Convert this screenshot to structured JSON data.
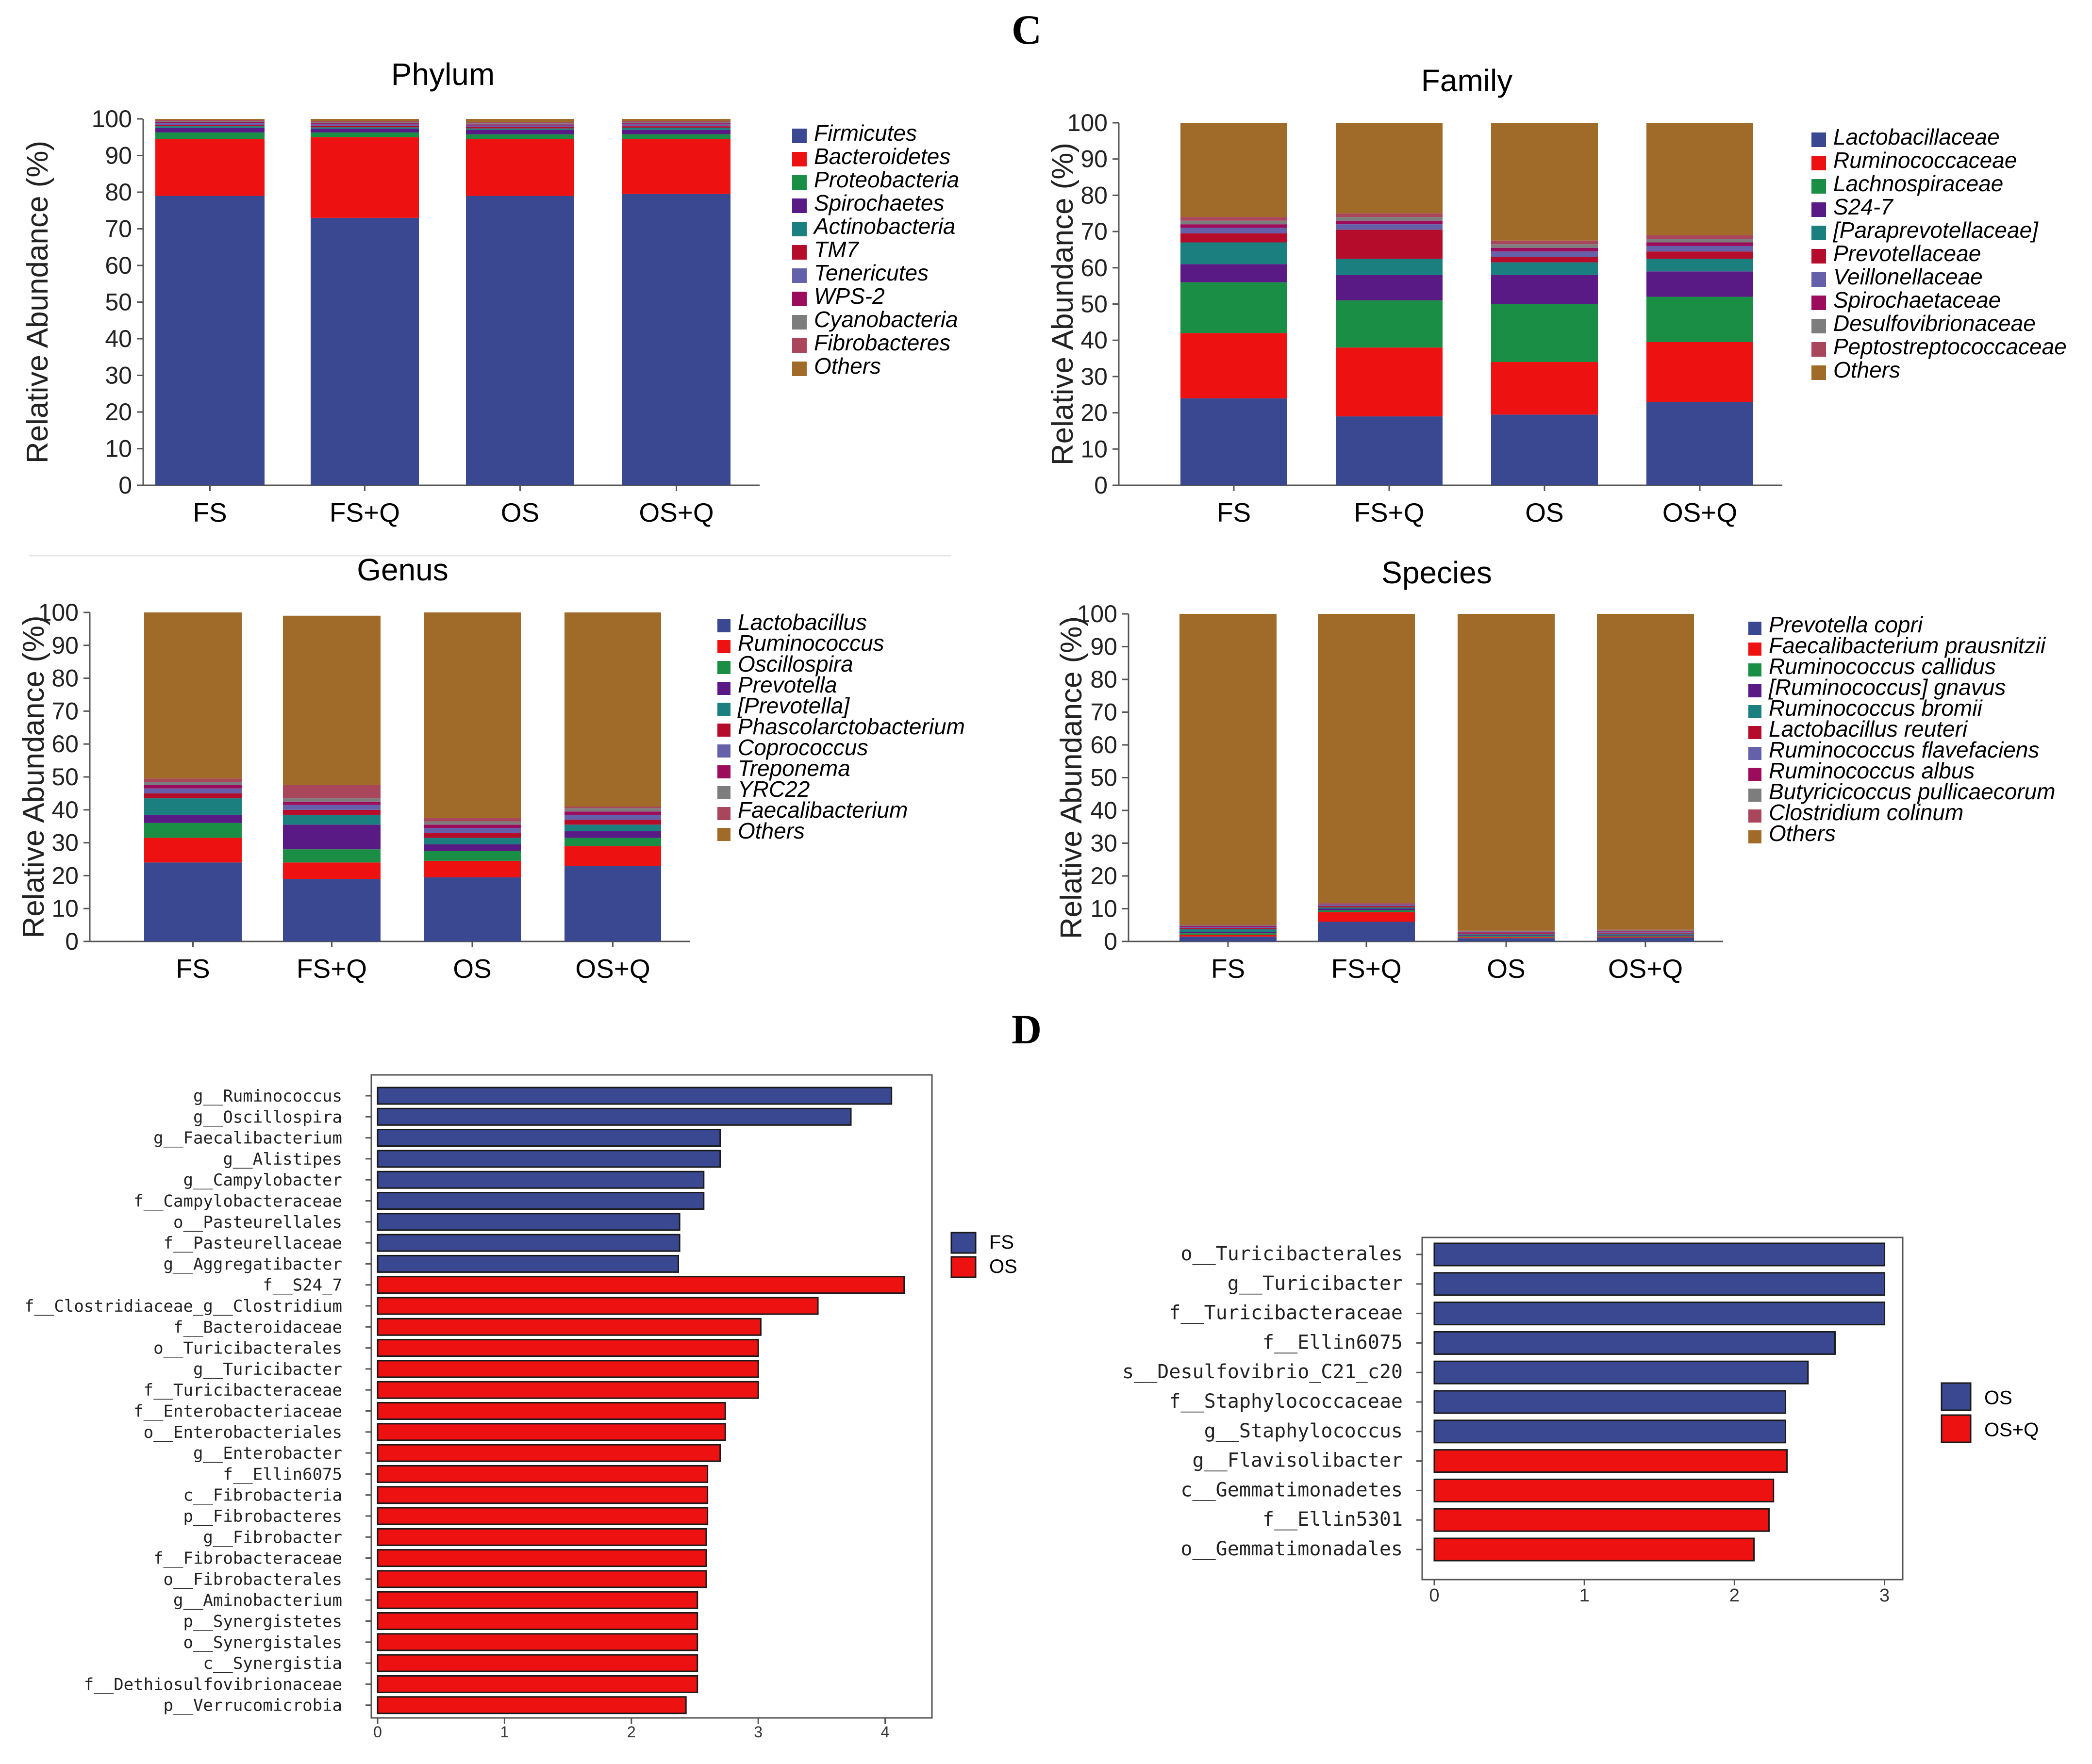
{
  "panel_labels": {
    "c": "C",
    "d": "D"
  },
  "colors": {
    "c1": "#3a4891",
    "c2": "#ee1111",
    "c3": "#1b8e45",
    "c4": "#5a1a86",
    "c5": "#1b7f80",
    "c6": "#b50c2c",
    "c7": "#6560aa",
    "c8": "#9c0c5c",
    "c9": "#7d7d7d",
    "c10": "#a9465c",
    "c11": "#a06b28"
  },
  "chart_data": [
    {
      "id": "phylum",
      "type": "bar",
      "stacked": true,
      "title": "Phylum",
      "ylabel": "Relative Abundance (%)",
      "ylim": [
        0,
        100
      ],
      "yticks": [
        "0",
        "10",
        "20",
        "30",
        "40",
        "50",
        "60",
        "70",
        "80",
        "90",
        "100"
      ],
      "categories": [
        "FS",
        "FS+Q",
        "OS",
        "OS+Q"
      ],
      "series": [
        {
          "name": "Firmicutes",
          "values": [
            79,
            73,
            79,
            79.5
          ]
        },
        {
          "name": "Bacteroidetes",
          "values": [
            15.5,
            22,
            15.5,
            15
          ]
        },
        {
          "name": "Proteobacteria",
          "values": [
            1.8,
            1.3,
            1.3,
            1.3
          ]
        },
        {
          "name": "Spirochaetes",
          "values": [
            1.2,
            1,
            1.2,
            1.2
          ]
        },
        {
          "name": "Actinobacteria",
          "values": [
            0.5,
            0.4,
            0.4,
            0.6
          ]
        },
        {
          "name": "TM7",
          "values": [
            0.4,
            0.4,
            0.4,
            0.4
          ]
        },
        {
          "name": "Tenericutes",
          "values": [
            0.4,
            0.4,
            0.4,
            0.5
          ]
        },
        {
          "name": "WPS-2",
          "values": [
            0.3,
            0.3,
            0.3,
            0.3
          ]
        },
        {
          "name": "Cyanobacteria",
          "values": [
            0.3,
            0.3,
            0.3,
            0.3
          ]
        },
        {
          "name": "Fibrobacteres",
          "values": [
            0.3,
            0.3,
            0.3,
            0.3
          ]
        },
        {
          "name": "Others",
          "values": [
            0.3,
            0.6,
            0.9,
            0.6
          ]
        }
      ]
    },
    {
      "id": "family",
      "type": "bar",
      "stacked": true,
      "title": "Family",
      "ylabel": "Relative Abundance (%)",
      "ylim": [
        0,
        100
      ],
      "yticks": [
        "0",
        "10",
        "20",
        "30",
        "40",
        "50",
        "60",
        "70",
        "80",
        "90",
        "100"
      ],
      "categories": [
        "FS",
        "FS+Q",
        "OS",
        "OS+Q"
      ],
      "series": [
        {
          "name": "Lactobacillaceae",
          "values": [
            24,
            19,
            19.5,
            23
          ]
        },
        {
          "name": "Ruminococcaceae",
          "values": [
            18,
            19,
            14.5,
            16.5
          ]
        },
        {
          "name": "Lachnospiraceae",
          "values": [
            14,
            13,
            16,
            12.5
          ]
        },
        {
          "name": "S24-7",
          "values": [
            5,
            7,
            8,
            7
          ]
        },
        {
          "name": "[Paraprevotellaceae]",
          "values": [
            6,
            4.5,
            3.5,
            3.5
          ]
        },
        {
          "name": "Prevotellaceae",
          "values": [
            2.5,
            8,
            1.5,
            2
          ]
        },
        {
          "name": "Veillonellaceae",
          "values": [
            1.5,
            1.5,
            1.5,
            1.5
          ]
        },
        {
          "name": "Spirochaetaceae",
          "values": [
            1,
            1,
            1,
            1
          ]
        },
        {
          "name": "Desulfovibrionaceae",
          "values": [
            1,
            1,
            1,
            1
          ]
        },
        {
          "name": "Peptostreptococcaceae",
          "values": [
            1,
            1,
            1,
            1
          ]
        },
        {
          "name": "Others",
          "values": [
            26,
            25,
            32.5,
            31
          ]
        }
      ]
    },
    {
      "id": "genus",
      "type": "bar",
      "stacked": true,
      "title": "Genus",
      "ylabel": "Relative Abundance (%)",
      "ylim": [
        0,
        100
      ],
      "yticks": [
        "0",
        "10",
        "20",
        "30",
        "40",
        "50",
        "60",
        "70",
        "80",
        "90",
        "100"
      ],
      "categories": [
        "FS",
        "FS+Q",
        "OS",
        "OS+Q"
      ],
      "series": [
        {
          "name": "Lactobacillus",
          "values": [
            24,
            19,
            19.5,
            23
          ]
        },
        {
          "name": "Ruminococcus",
          "values": [
            7.5,
            5,
            5,
            6
          ]
        },
        {
          "name": "Oscillospira",
          "values": [
            4.5,
            4,
            3,
            2.5
          ]
        },
        {
          "name": "Prevotella",
          "values": [
            2.5,
            7.5,
            2,
            2
          ]
        },
        {
          "name": "[Prevotella]",
          "values": [
            5,
            3,
            2,
            2
          ]
        },
        {
          "name": "Phascolarctobacterium",
          "values": [
            1.5,
            1.5,
            1.5,
            1.5
          ]
        },
        {
          "name": "Coprococcus",
          "values": [
            1.5,
            1.5,
            1.5,
            1.5
          ]
        },
        {
          "name": "Treponema",
          "values": [
            1,
            1,
            1,
            1
          ]
        },
        {
          "name": "YRC22",
          "values": [
            1,
            1,
            1,
            1
          ]
        },
        {
          "name": "Faecalibacterium",
          "values": [
            1,
            4,
            1,
            0.5
          ]
        },
        {
          "name": "Others",
          "values": [
            50.5,
            51.5,
            62.5,
            59
          ]
        }
      ]
    },
    {
      "id": "species",
      "type": "bar",
      "stacked": true,
      "title": "Species",
      "ylabel": "Relative Abundance (%)",
      "ylim": [
        0,
        100
      ],
      "yticks": [
        "0",
        "10",
        "20",
        "30",
        "40",
        "50",
        "60",
        "70",
        "80",
        "90",
        "100"
      ],
      "categories": [
        "FS",
        "FS+Q",
        "OS",
        "OS+Q"
      ],
      "series": [
        {
          "name": "Prevotella copri",
          "values": [
            1.5,
            6,
            1,
            1.2
          ]
        },
        {
          "name": "Faecalibacterium prausnitzii",
          "values": [
            0.5,
            3,
            0.3,
            0.3
          ]
        },
        {
          "name": "Ruminococcus callidus",
          "values": [
            0.5,
            0.5,
            0.3,
            0.3
          ]
        },
        {
          "name": "[Ruminococcus] gnavus",
          "values": [
            0.4,
            0.5,
            0.3,
            0.3
          ]
        },
        {
          "name": "Ruminococcus bromii",
          "values": [
            0.8,
            0.4,
            0.3,
            0.3
          ]
        },
        {
          "name": "Lactobacillus reuteri",
          "values": [
            0.4,
            0.4,
            0.3,
            0.3
          ]
        },
        {
          "name": "Ruminococcus flavefaciens",
          "values": [
            0.3,
            0.3,
            0.2,
            0.3
          ]
        },
        {
          "name": "Ruminococcus albus",
          "values": [
            0.3,
            0.2,
            0.2,
            0.2
          ]
        },
        {
          "name": "Butyricicoccus pullicaecorum",
          "values": [
            0.2,
            0.2,
            0.2,
            0.2
          ]
        },
        {
          "name": "Clostridium colinum",
          "values": [
            0.2,
            0.2,
            0.2,
            0.2
          ]
        },
        {
          "name": "Others",
          "values": [
            94.9,
            88.3,
            96.7,
            96.4
          ]
        }
      ]
    },
    {
      "id": "lefse_fs_os",
      "type": "bar",
      "orientation": "horizontal",
      "xlim": [
        0,
        4.3
      ],
      "xticks": [
        "0",
        "1",
        "2",
        "3",
        "4"
      ],
      "legend": [
        {
          "name": "FS",
          "color": "#3a4891"
        },
        {
          "name": "OS",
          "color": "#ee1111"
        }
      ],
      "categories": [
        "g__Ruminococcus",
        "g__Oscillospira",
        "g__Faecalibacterium",
        "g__Alistipes",
        "g__Campylobacter",
        "f__Campylobacteraceae",
        "o__Pasteurellales",
        "f__Pasteurellaceae",
        "g__Aggregatibacter",
        "f__S24_7",
        "f__Clostridiaceae_g__Clostridium",
        "f__Bacteroidaceae",
        "o__Turicibacterales",
        "g__Turicibacter",
        "f__Turicibacteraceae",
        "f__Enterobacteriaceae",
        "o__Enterobacteriales",
        "g__Enterobacter",
        "f__Ellin6075",
        "c__Fibrobacteria",
        "p__Fibrobacteres",
        "g__Fibrobacter",
        "f__Fibrobacteraceae",
        "o__Fibrobacterales",
        "g__Aminobacterium",
        "p__Synergistetes",
        "o__Synergistales",
        "c__Synergistia",
        "f__Dethiosulfovibrionaceae",
        "p__Verrucomicrobia"
      ],
      "values": [
        4.05,
        3.73,
        2.7,
        2.7,
        2.57,
        2.57,
        2.38,
        2.38,
        2.37,
        4.15,
        3.47,
        3.02,
        3.0,
        3.0,
        3.0,
        2.74,
        2.74,
        2.7,
        2.6,
        2.6,
        2.6,
        2.59,
        2.59,
        2.59,
        2.52,
        2.52,
        2.52,
        2.52,
        2.52,
        2.43
      ],
      "groups": [
        "FS",
        "FS",
        "FS",
        "FS",
        "FS",
        "FS",
        "FS",
        "FS",
        "FS",
        "OS",
        "OS",
        "OS",
        "OS",
        "OS",
        "OS",
        "OS",
        "OS",
        "OS",
        "OS",
        "OS",
        "OS",
        "OS",
        "OS",
        "OS",
        "OS",
        "OS",
        "OS",
        "OS",
        "OS",
        "OS"
      ]
    },
    {
      "id": "lefse_os_osq",
      "type": "bar",
      "orientation": "horizontal",
      "xlim": [
        0,
        3.05
      ],
      "xticks": [
        "0",
        "1",
        "2",
        "3"
      ],
      "legend": [
        {
          "name": "OS",
          "color": "#3a4891"
        },
        {
          "name": "OS+Q",
          "color": "#ee1111"
        }
      ],
      "categories": [
        "o__Turicibacterales",
        "g__Turicibacter",
        "f__Turicibacteraceae",
        "f__Ellin6075",
        "s__Desulfovibrio_C21_c20",
        "f__Staphylococcaceae",
        "g__Staphylococcus",
        "g__Flavisolibacter",
        "c__Gemmatimonadetes",
        "f__Ellin5301",
        "o__Gemmatimonadales"
      ],
      "values": [
        3.0,
        3.0,
        3.0,
        2.67,
        2.49,
        2.34,
        2.34,
        2.35,
        2.26,
        2.23,
        2.13
      ],
      "groups": [
        "OS",
        "OS",
        "OS",
        "OS",
        "OS",
        "OS",
        "OS",
        "OS+Q",
        "OS+Q",
        "OS+Q",
        "OS+Q"
      ]
    }
  ]
}
